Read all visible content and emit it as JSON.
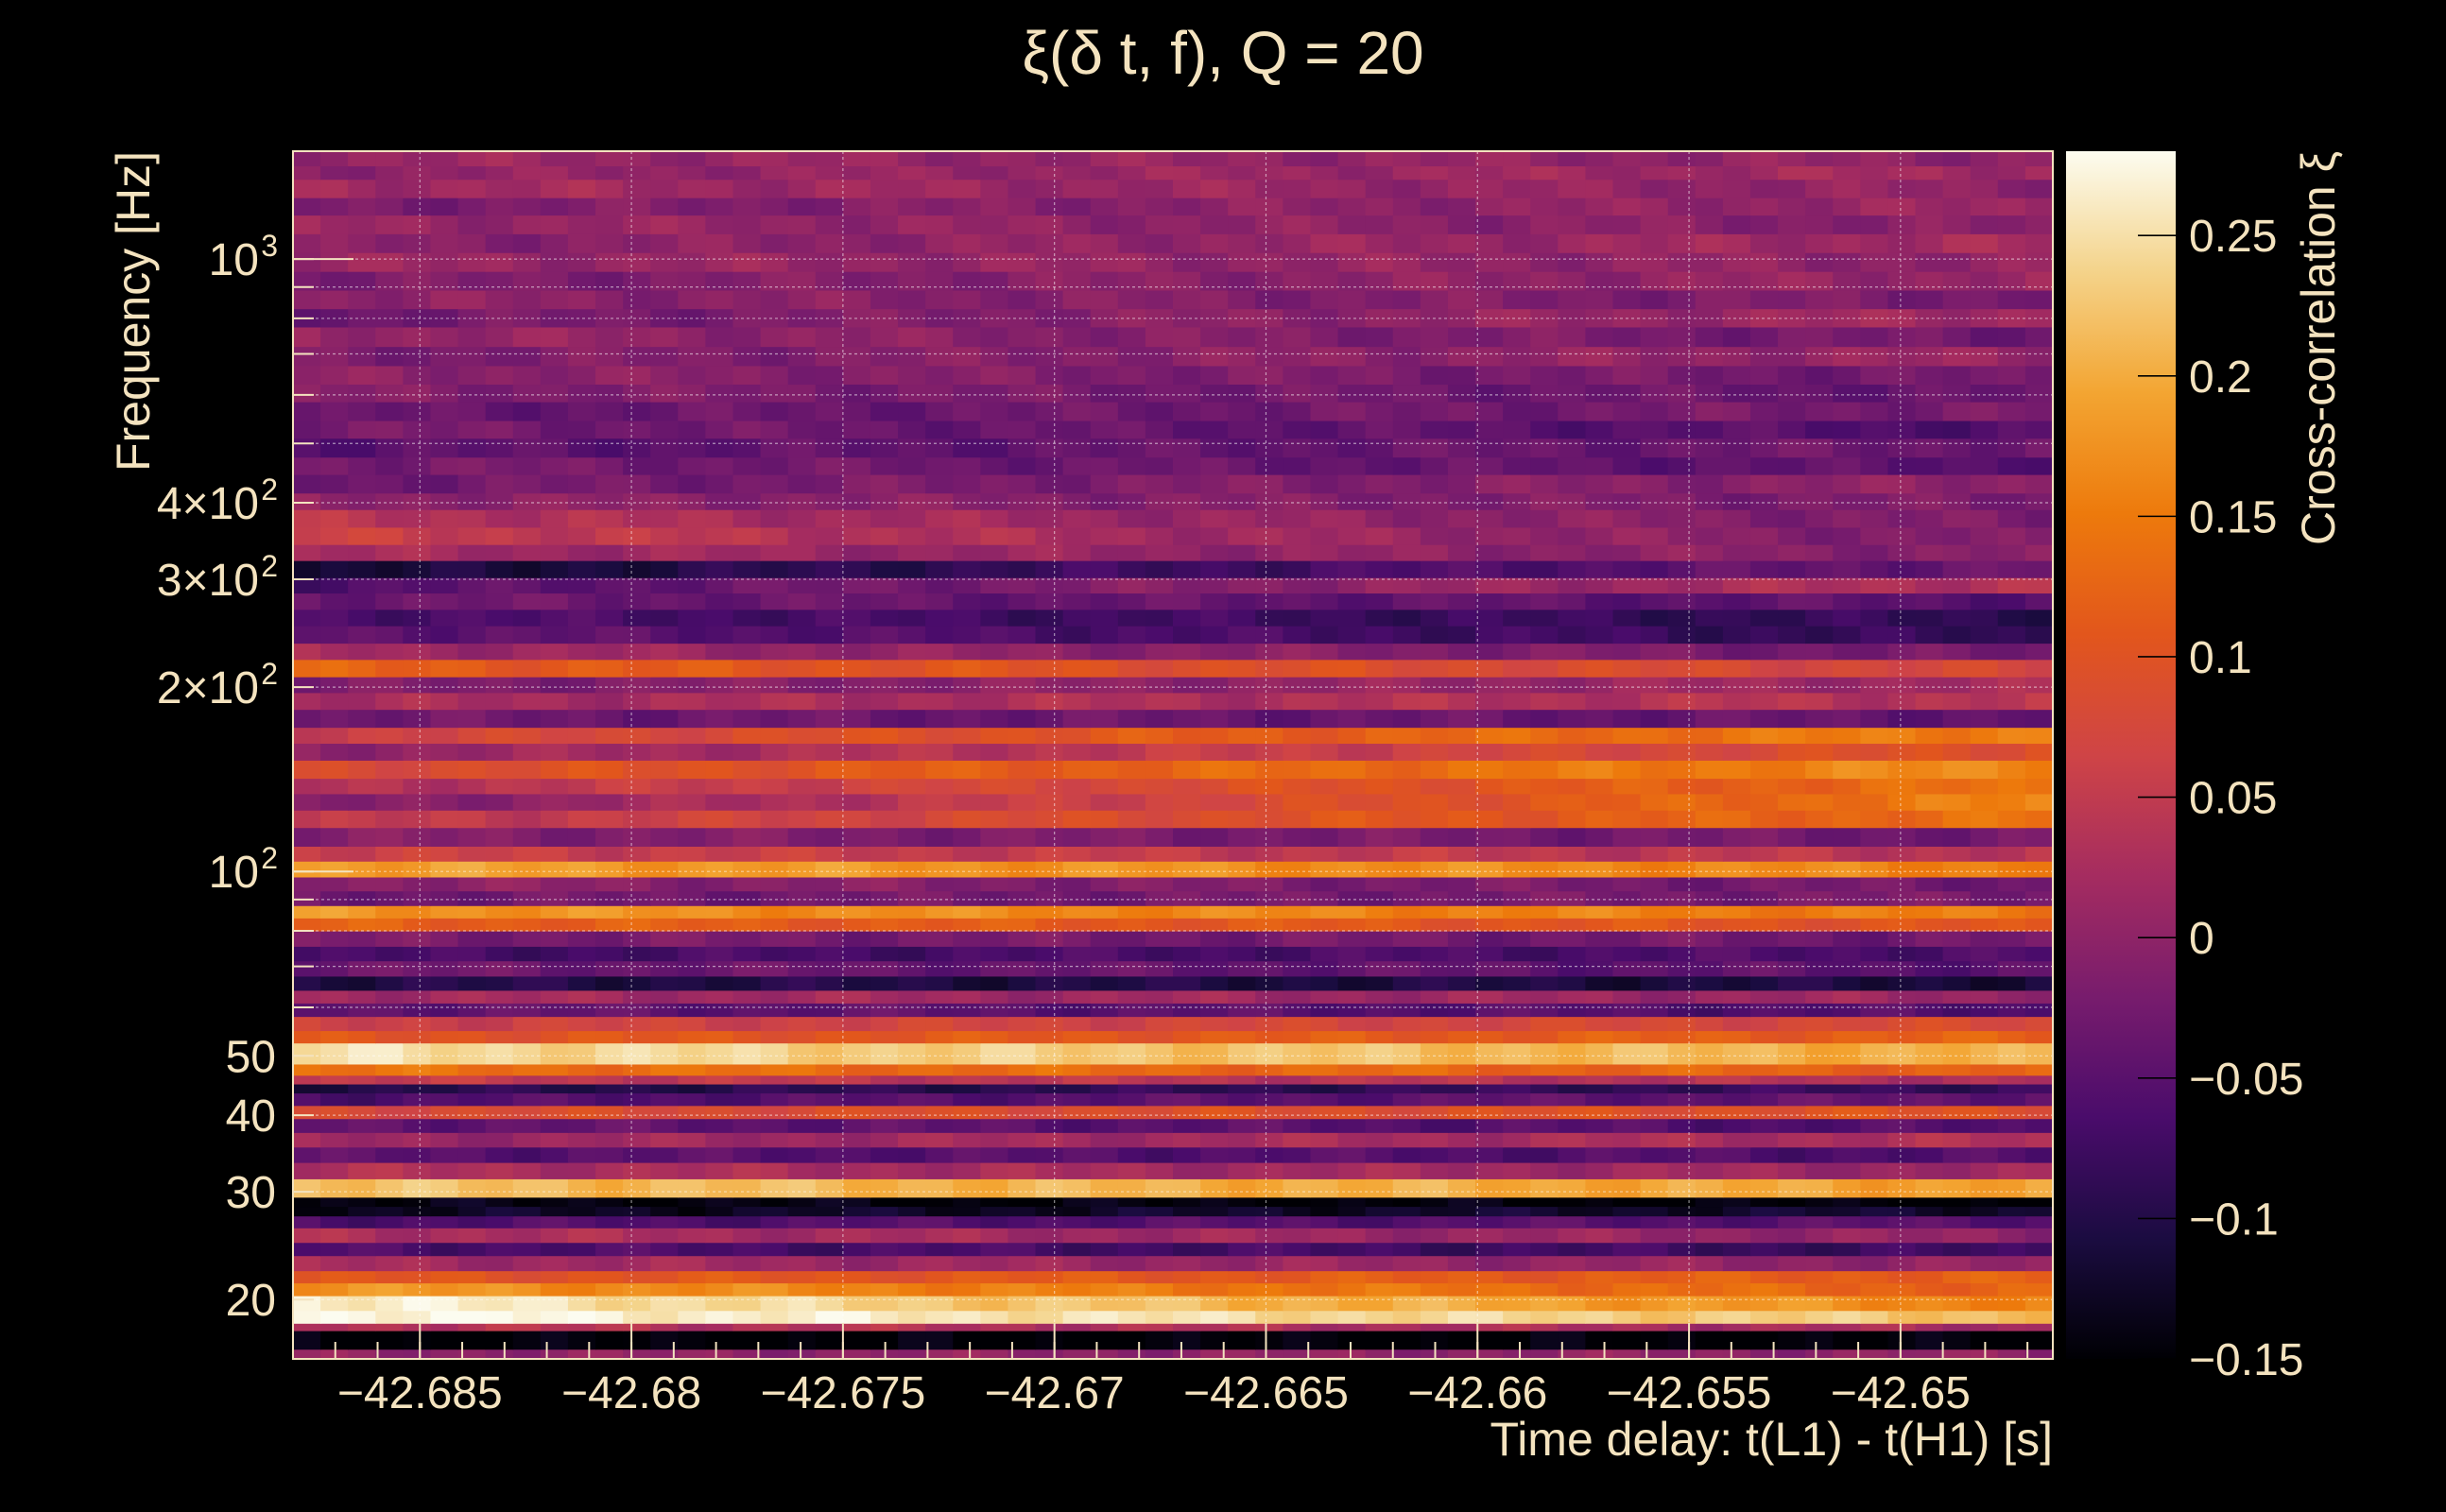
{
  "chart_data": {
    "type": "heatmap",
    "title": "ξ(δ t, f), Q = 20",
    "xlabel": "Time delay: t(L1) - t(H1) [s]",
    "ylabel": "Frequency [Hz]",
    "colorbar_label": "Cross-correlation ξ",
    "x_range": [
      -42.688,
      -42.6464
    ],
    "y_range": [
      16,
      1500
    ],
    "y_scale": "log",
    "z_range": [
      -0.15,
      0.28
    ],
    "grid": true,
    "x_ticks": [
      -42.685,
      -42.68,
      -42.675,
      -42.67,
      -42.665,
      -42.66,
      -42.655,
      -42.65
    ],
    "x_tick_labels": [
      "−42.685",
      "−42.68",
      "−42.675",
      "−42.67",
      "−42.665",
      "−42.66",
      "−42.655",
      "−42.65"
    ],
    "y_ticks": [
      {
        "value": 20,
        "label": "20"
      },
      {
        "value": 30,
        "label": "30"
      },
      {
        "value": 40,
        "label": "40"
      },
      {
        "value": 50,
        "label": "50"
      },
      {
        "value": 100,
        "label": "10",
        "sup": "2"
      },
      {
        "value": 200,
        "label": "2×10",
        "sup": "2"
      },
      {
        "value": 300,
        "label": "3×10",
        "sup": "2"
      },
      {
        "value": 400,
        "label": "4×10",
        "sup": "2"
      },
      {
        "value": 1000,
        "label": "10",
        "sup": "3"
      }
    ],
    "colorbar_ticks": [
      {
        "value": 0.25,
        "label": "0.25"
      },
      {
        "value": 0.2,
        "label": "0.2"
      },
      {
        "value": 0.15,
        "label": "0.15"
      },
      {
        "value": 0.1,
        "label": "0.1"
      },
      {
        "value": 0.05,
        "label": "0.05"
      },
      {
        "value": 0,
        "label": "0"
      },
      {
        "value": -0.05,
        "label": "−0.05"
      },
      {
        "value": -0.1,
        "label": "−0.1"
      },
      {
        "value": -0.15,
        "label": "−0.15"
      }
    ],
    "colormap": [
      "#000004",
      "#1b0c41",
      "#4a0c6b",
      "#781c6d",
      "#a52c60",
      "#cf4446",
      "#e2561c",
      "#ed7a0c",
      "#f3a532",
      "#f4d38a",
      "#fcfcf0"
    ],
    "time_columns": 64,
    "bands": [
      {
        "f_low": 16.0,
        "f_high": 16.6,
        "left": 0.0,
        "right": 0.0
      },
      {
        "f_low": 16.6,
        "f_high": 17.8,
        "left": -0.15,
        "right": -0.15
      },
      {
        "f_low": 17.8,
        "f_high": 18.3,
        "left": 0.04,
        "right": 0.02
      },
      {
        "f_low": 18.3,
        "f_high": 19.2,
        "left": 0.28,
        "right": 0.22
      },
      {
        "f_low": 19.2,
        "f_high": 20.3,
        "left": 0.27,
        "right": 0.16
      },
      {
        "f_low": 20.3,
        "f_high": 21.3,
        "left": 0.18,
        "right": 0.12
      },
      {
        "f_low": 21.3,
        "f_high": 22.3,
        "left": 0.1,
        "right": 0.12
      },
      {
        "f_low": 22.3,
        "f_high": 23.6,
        "left": 0.02,
        "right": 0.0
      },
      {
        "f_low": 23.6,
        "f_high": 24.8,
        "left": -0.06,
        "right": -0.08
      },
      {
        "f_low": 24.8,
        "f_high": 26.2,
        "left": 0.03,
        "right": 0.0
      },
      {
        "f_low": 26.2,
        "f_high": 27.4,
        "left": -0.06,
        "right": -0.05
      },
      {
        "f_low": 27.4,
        "f_high": 28.4,
        "left": -0.13,
        "right": -0.12
      },
      {
        "f_low": 28.4,
        "f_high": 29.4,
        "left": -0.14,
        "right": -0.15
      },
      {
        "f_low": 29.4,
        "f_high": 31.5,
        "left": 0.22,
        "right": 0.19
      },
      {
        "f_low": 31.5,
        "f_high": 33.5,
        "left": 0.03,
        "right": 0.01
      },
      {
        "f_low": 33.5,
        "f_high": 35.5,
        "left": -0.05,
        "right": -0.06
      },
      {
        "f_low": 35.5,
        "f_high": 37.5,
        "left": 0.01,
        "right": 0.03
      },
      {
        "f_low": 37.5,
        "f_high": 39.5,
        "left": -0.04,
        "right": -0.06
      },
      {
        "f_low": 39.5,
        "f_high": 41.5,
        "left": 0.08,
        "right": 0.1
      },
      {
        "f_low": 41.5,
        "f_high": 43.5,
        "left": -0.06,
        "right": -0.04
      },
      {
        "f_low": 43.5,
        "f_high": 45.0,
        "left": -0.1,
        "right": -0.08
      },
      {
        "f_low": 45.0,
        "f_high": 46.5,
        "left": 0.05,
        "right": 0.03
      },
      {
        "f_low": 46.5,
        "f_high": 48.5,
        "left": 0.14,
        "right": 0.12
      },
      {
        "f_low": 48.5,
        "f_high": 52.5,
        "left": 0.25,
        "right": 0.2
      },
      {
        "f_low": 52.5,
        "f_high": 55.0,
        "left": 0.1,
        "right": 0.12
      },
      {
        "f_low": 55.0,
        "f_high": 58.0,
        "left": 0.06,
        "right": 0.08
      },
      {
        "f_low": 58.0,
        "f_high": 61.0,
        "left": -0.04,
        "right": -0.06
      },
      {
        "f_low": 61.0,
        "f_high": 64.0,
        "left": 0.02,
        "right": 0.01
      },
      {
        "f_low": 64.0,
        "f_high": 67.5,
        "left": -0.1,
        "right": -0.11
      },
      {
        "f_low": 67.5,
        "f_high": 71.5,
        "left": -0.03,
        "right": -0.05
      },
      {
        "f_low": 71.5,
        "f_high": 75.5,
        "left": -0.07,
        "right": -0.06
      },
      {
        "f_low": 75.5,
        "f_high": 80.0,
        "left": -0.02,
        "right": -0.03
      },
      {
        "f_low": 80.0,
        "f_high": 84.0,
        "left": 0.12,
        "right": 0.1
      },
      {
        "f_low": 84.0,
        "f_high": 88.0,
        "left": 0.18,
        "right": 0.15
      },
      {
        "f_low": 88.0,
        "f_high": 93.0,
        "left": -0.03,
        "right": -0.02
      },
      {
        "f_low": 93.0,
        "f_high": 98.0,
        "left": 0.0,
        "right": -0.03
      },
      {
        "f_low": 98.0,
        "f_high": 104.0,
        "left": 0.19,
        "right": 0.16
      },
      {
        "f_low": 104.0,
        "f_high": 110.0,
        "left": 0.06,
        "right": 0.04
      },
      {
        "f_low": 110.0,
        "f_high": 118.0,
        "left": -0.01,
        "right": -0.03
      },
      {
        "f_low": 118.0,
        "f_high": 126.0,
        "left": 0.04,
        "right": 0.14
      },
      {
        "f_low": 126.0,
        "f_high": 134.0,
        "left": -0.02,
        "right": 0.16
      },
      {
        "f_low": 134.0,
        "f_high": 142.0,
        "left": 0.03,
        "right": 0.14
      },
      {
        "f_low": 142.0,
        "f_high": 152.0,
        "left": 0.08,
        "right": 0.17
      },
      {
        "f_low": 152.0,
        "f_high": 162.0,
        "left": 0.0,
        "right": 0.1
      },
      {
        "f_low": 162.0,
        "f_high": 172.0,
        "left": 0.06,
        "right": 0.16
      },
      {
        "f_low": 172.0,
        "f_high": 184.0,
        "left": -0.03,
        "right": -0.04
      },
      {
        "f_low": 184.0,
        "f_high": 196.0,
        "left": 0.02,
        "right": 0.04
      },
      {
        "f_low": 196.0,
        "f_high": 208.0,
        "left": -0.02,
        "right": 0.02
      },
      {
        "f_low": 208.0,
        "f_high": 222.0,
        "left": 0.12,
        "right": 0.07
      },
      {
        "f_low": 222.0,
        "f_high": 236.0,
        "left": 0.02,
        "right": -0.03
      },
      {
        "f_low": 236.0,
        "f_high": 252.0,
        "left": -0.04,
        "right": -0.09
      },
      {
        "f_low": 252.0,
        "f_high": 268.0,
        "left": -0.06,
        "right": -0.09
      },
      {
        "f_low": 268.0,
        "f_high": 285.0,
        "left": -0.03,
        "right": -0.05
      },
      {
        "f_low": 285.0,
        "f_high": 302.0,
        "left": -0.06,
        "right": 0.04
      },
      {
        "f_low": 302.0,
        "f_high": 322.0,
        "left": -0.12,
        "right": -0.03
      },
      {
        "f_low": 322.0,
        "f_high": 342.0,
        "left": 0.02,
        "right": -0.01
      },
      {
        "f_low": 342.0,
        "f_high": 365.0,
        "left": 0.06,
        "right": -0.02
      },
      {
        "f_low": 365.0,
        "f_high": 390.0,
        "left": 0.04,
        "right": -0.02
      },
      {
        "f_low": 390.0,
        "f_high": 415.0,
        "left": 0.0,
        "right": -0.02
      },
      {
        "f_low": 415.0,
        "f_high": 445.0,
        "left": -0.03,
        "right": 0.0
      },
      {
        "f_low": 445.0,
        "f_high": 475.0,
        "left": -0.02,
        "right": -0.05
      },
      {
        "f_low": 475.0,
        "f_high": 510.0,
        "left": -0.05,
        "right": -0.03
      },
      {
        "f_low": 510.0,
        "f_high": 545.0,
        "left": -0.02,
        "right": -0.06
      },
      {
        "f_low": 545.0,
        "f_high": 585.0,
        "left": -0.04,
        "right": -0.02
      },
      {
        "f_low": 585.0,
        "f_high": 625.0,
        "left": -0.01,
        "right": -0.04
      },
      {
        "f_low": 625.0,
        "f_high": 670.0,
        "left": 0.0,
        "right": -0.03
      },
      {
        "f_low": 670.0,
        "f_high": 720.0,
        "left": -0.02,
        "right": 0.01
      },
      {
        "f_low": 720.0,
        "f_high": 775.0,
        "left": 0.01,
        "right": -0.03
      },
      {
        "f_low": 775.0,
        "f_high": 830.0,
        "left": -0.03,
        "right": 0.02
      },
      {
        "f_low": 830.0,
        "f_high": 890.0,
        "left": 0.0,
        "right": -0.02
      },
      {
        "f_low": 890.0,
        "f_high": 955.0,
        "left": -0.02,
        "right": 0.01
      },
      {
        "f_low": 955.0,
        "f_high": 1025.0,
        "left": 0.01,
        "right": 0.0
      },
      {
        "f_low": 1025.0,
        "f_high": 1100.0,
        "left": -0.01,
        "right": 0.02
      },
      {
        "f_low": 1100.0,
        "f_high": 1180.0,
        "left": 0.01,
        "right": -0.01
      },
      {
        "f_low": 1180.0,
        "f_high": 1260.0,
        "left": -0.02,
        "right": 0.01
      },
      {
        "f_low": 1260.0,
        "f_high": 1350.0,
        "left": 0.02,
        "right": 0.0
      },
      {
        "f_low": 1350.0,
        "f_high": 1420.0,
        "left": 0.0,
        "right": 0.02
      },
      {
        "f_low": 1420.0,
        "f_high": 1500.0,
        "left": 0.01,
        "right": 0.0
      }
    ]
  }
}
